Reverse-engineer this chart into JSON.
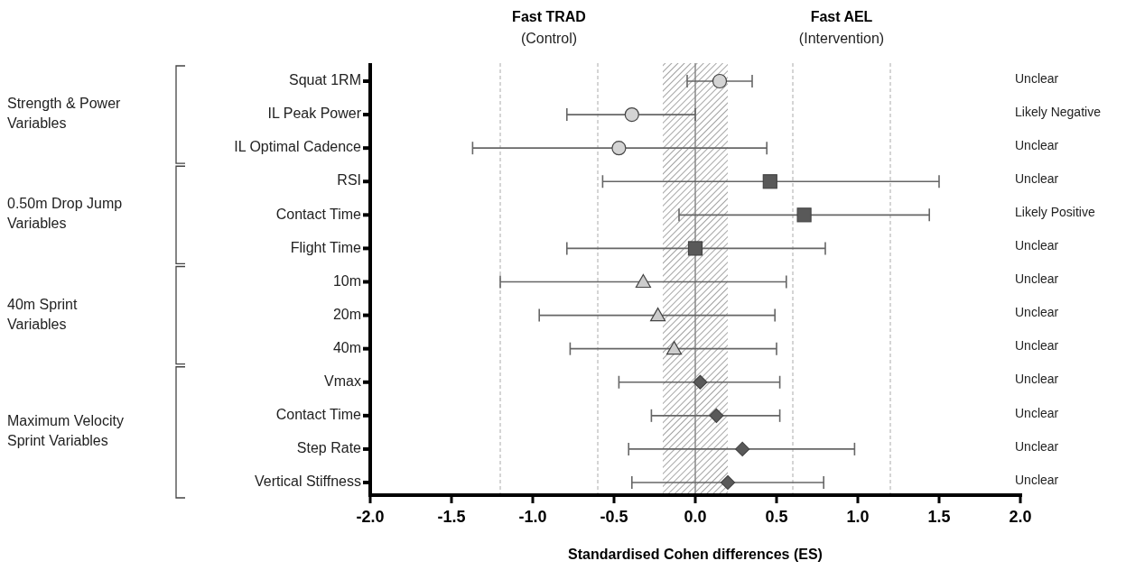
{
  "chart_data": {
    "type": "scatter",
    "orientation": "horizontal",
    "xlabel": "Standardised Cohen differences (ES)",
    "categories": [
      "Squat 1RM",
      "IL Peak Power",
      "IL Optimal Cadence",
      "RSI",
      "Contact Time",
      "Flight Time",
      "10m",
      "20m",
      "40m",
      "Vmax",
      "Contact Time",
      "Step Rate",
      "Vertical Stiffness"
    ],
    "series": [
      {
        "color": "#d4d4d4",
        "marker": "circle",
        "values": [
          0.15,
          -0.39,
          -0.47,
          null,
          null,
          null,
          null,
          null,
          null,
          null,
          null,
          null,
          null
        ],
        "errors": [
          [
            -0.05,
            0.35
          ],
          [
            -0.79,
            0.0
          ],
          [
            -1.37,
            0.44
          ],
          null,
          null,
          null,
          null,
          null,
          null,
          null,
          null,
          null,
          null
        ]
      },
      {
        "color": "#595959",
        "marker": "square",
        "values": [
          null,
          null,
          null,
          0.46,
          0.67,
          0.0,
          null,
          null,
          null,
          null,
          null,
          null,
          null
        ],
        "errors": [
          null,
          null,
          null,
          [
            -0.57,
            1.5
          ],
          [
            -0.1,
            1.44
          ],
          [
            -0.79,
            0.8
          ],
          null,
          null,
          null,
          null,
          null,
          null,
          null
        ]
      },
      {
        "color": "#cccccc",
        "marker": "triangle",
        "values": [
          null,
          null,
          null,
          null,
          null,
          null,
          -0.32,
          -0.23,
          -0.13,
          null,
          null,
          null,
          null
        ],
        "errors": [
          null,
          null,
          null,
          null,
          null,
          null,
          [
            -1.2,
            0.56
          ],
          [
            -0.96,
            0.49
          ],
          [
            -0.77,
            0.5
          ],
          null,
          null,
          null,
          null
        ]
      },
      {
        "color": "#595959",
        "marker": "diamond",
        "values": [
          null,
          null,
          null,
          null,
          null,
          null,
          null,
          null,
          null,
          0.03,
          0.13,
          0.29,
          0.2
        ],
        "errors": [
          null,
          null,
          null,
          null,
          null,
          null,
          null,
          null,
          null,
          [
            -0.47,
            0.52
          ],
          [
            -0.27,
            0.52
          ],
          [
            -0.41,
            0.98
          ],
          [
            -0.39,
            0.79
          ]
        ]
      }
    ],
    "xlim": [
      -2,
      2
    ],
    "xticks": [
      {
        "value": -2,
        "label": "-2.0"
      },
      {
        "value": -1.5,
        "label": "-1.5"
      },
      {
        "value": -1,
        "label": "-1.0"
      },
      {
        "value": -0.5,
        "label": "-0.5"
      },
      {
        "value": 0,
        "label": "0.0"
      },
      {
        "value": 0.5,
        "label": "0.5"
      },
      {
        "value": 1,
        "label": "1.0"
      },
      {
        "value": 1.5,
        "label": "1.5"
      },
      {
        "value": 2,
        "label": "2.0"
      }
    ],
    "ref_lines": [
      {
        "axis": "x",
        "value": -1.2,
        "line_style": "dashed",
        "color": "#aaaaaa"
      },
      {
        "axis": "x",
        "value": -0.6,
        "line_style": "dashed",
        "color": "#aaaaaa"
      },
      {
        "axis": "x",
        "value": 0,
        "line_style": "solid",
        "color": "#888888"
      },
      {
        "axis": "x",
        "value": 0.6,
        "line_style": "dashed",
        "color": "#aaaaaa"
      },
      {
        "axis": "x",
        "value": 1.2,
        "line_style": "dashed",
        "color": "#aaaaaa"
      }
    ],
    "bands": [
      {
        "axis": "x",
        "from": -0.2,
        "to": 0.2,
        "color": "#666666"
      }
    ],
    "annotations": [
      "Fast TRAD",
      "(Control)",
      "Fast AEL",
      "(Intervention)",
      "Strength & Power Variables",
      "0.50m Drop Jump Variables",
      "40m Sprint Variables",
      "Maximum Velocity Sprint Variables",
      "Unclear",
      "Likely Negative",
      "Unclear",
      "Unclear",
      "Likely Positive",
      "Unclear",
      "Unclear",
      "Unclear",
      "Unclear",
      "Unclear",
      "Unclear",
      "Unclear",
      "Unclear"
    ]
  }
}
